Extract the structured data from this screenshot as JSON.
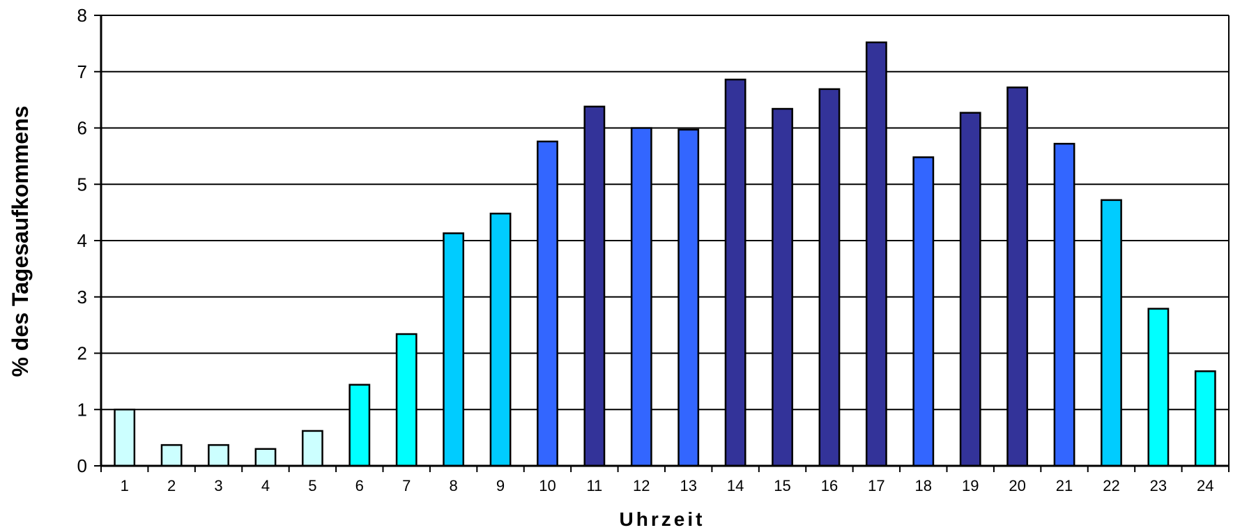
{
  "chart_data": {
    "type": "bar",
    "categories": [
      "1",
      "2",
      "3",
      "4",
      "5",
      "6",
      "7",
      "8",
      "9",
      "10",
      "11",
      "12",
      "13",
      "14",
      "15",
      "16",
      "17",
      "18",
      "19",
      "20",
      "21",
      "22",
      "23",
      "24"
    ],
    "values": [
      1.0,
      0.37,
      0.37,
      0.3,
      0.62,
      1.44,
      2.34,
      4.13,
      4.48,
      5.76,
      6.38,
      6.0,
      5.97,
      6.86,
      6.34,
      6.69,
      7.52,
      5.48,
      6.27,
      6.72,
      5.72,
      4.72,
      2.79,
      1.68
    ],
    "colors": [
      "#ccffff",
      "#ccffff",
      "#ccffff",
      "#ccffff",
      "#ccffff",
      "#00ffff",
      "#00ffff",
      "#00ccff",
      "#00ccff",
      "#3366ff",
      "#333399",
      "#3366ff",
      "#3366ff",
      "#333399",
      "#333399",
      "#333399",
      "#333399",
      "#3366ff",
      "#333399",
      "#333399",
      "#3366ff",
      "#00ccff",
      "#00ffff",
      "#00ffff"
    ],
    "title": "",
    "xlabel": "Uhrzeit",
    "ylabel": "% des Tagesaufkommens",
    "ylim": [
      0,
      8
    ],
    "yticks": [
      "0",
      "1",
      "2",
      "3",
      "4",
      "5",
      "6",
      "7",
      "8"
    ],
    "grid": true,
    "legend": "none"
  }
}
